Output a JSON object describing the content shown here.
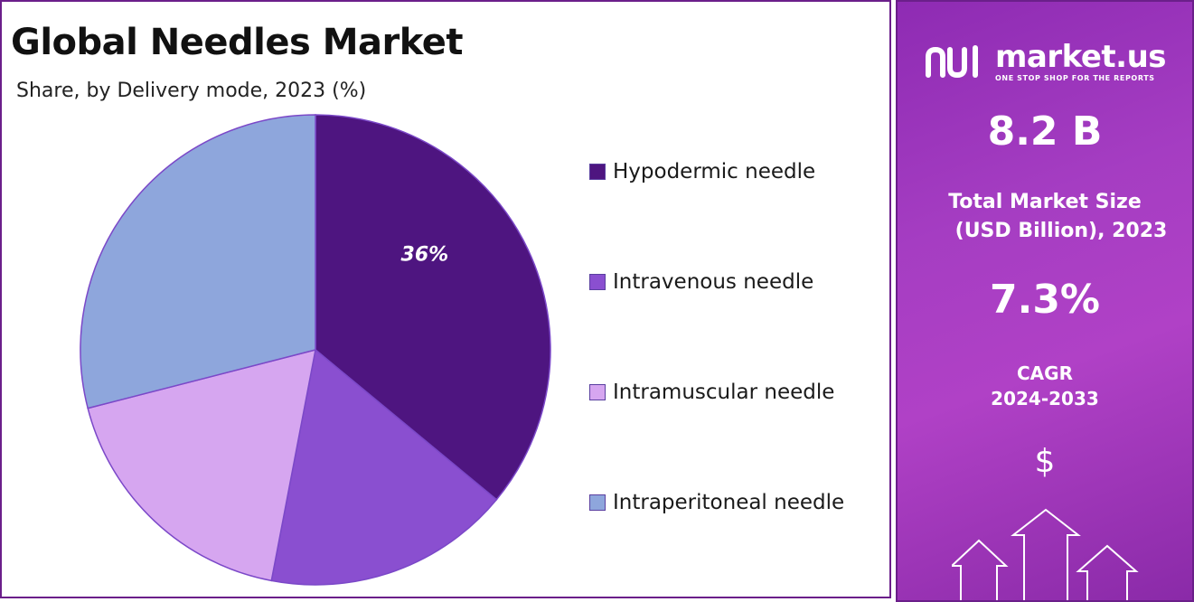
{
  "header": {
    "title": "Global Needles Market",
    "subtitle": "Share, by Delivery mode, 2023 (%)"
  },
  "chart_data": {
    "type": "pie",
    "title": "Global Needles Market",
    "subtitle": "Share, by Delivery mode, 2023 (%)",
    "legend_position": "right",
    "categories": [
      "Hypodermic needle",
      "Intravenous needle",
      "Intramuscular needle",
      "Intraperitoneal needle"
    ],
    "values": [
      36,
      17,
      18,
      29
    ],
    "colors": [
      "#4e1580",
      "#8a4fd0",
      "#d6a6f0",
      "#8ea6dc"
    ],
    "data_labels": [
      "36%",
      "",
      "",
      ""
    ]
  },
  "sidebar": {
    "brand_name": "market.us",
    "brand_tagline": "ONE STOP SHOP FOR THE REPORTS",
    "market_size_value": "8.2 B",
    "market_size_caption_line1": "Total Market Size",
    "market_size_caption_line2": "(USD Billion), 2023",
    "cagr_value": "7.3%",
    "cagr_caption_line1": "CAGR",
    "cagr_caption_line2": "2024-2033",
    "dollar_symbol": "$",
    "background_color": "#a53dc2",
    "icons": [
      "market-us-logo-icon",
      "dollar-icon",
      "up-arrow-icon"
    ]
  }
}
